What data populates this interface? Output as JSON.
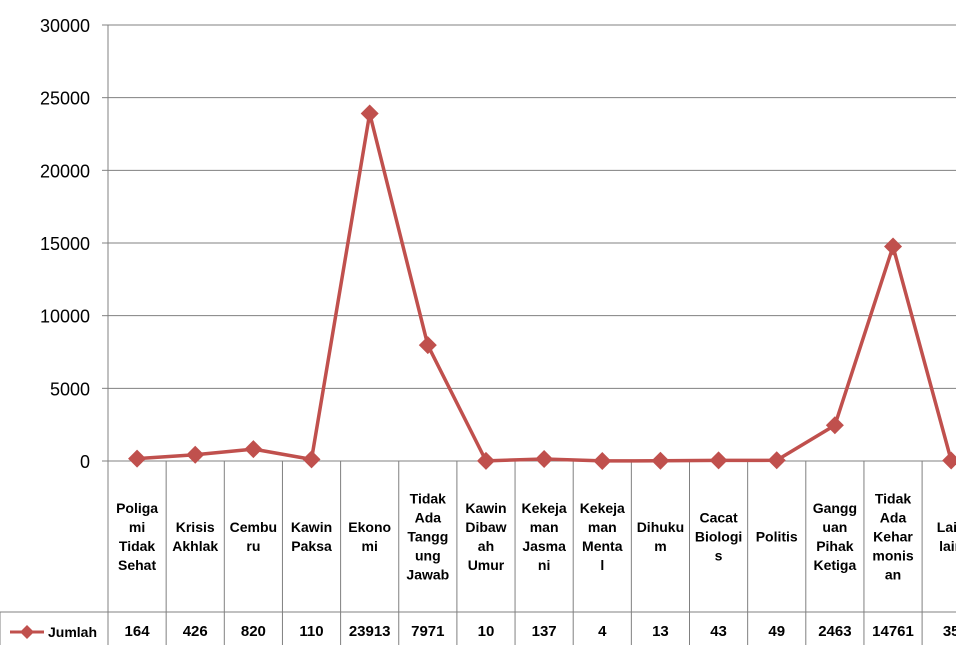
{
  "chart_data": {
    "type": "line",
    "categories": [
      "Poliga mi Tidak Sehat",
      "Krisis Akhlak",
      "Cembu ru",
      "Kawin Paksa",
      "Ekono mi",
      "Tidak Ada Tangg ung Jawab",
      "Kawin Dibaw ah Umur",
      "Kekeja man Jasma ni",
      "Kekeja man Menta l",
      "Dihuku m",
      "Cacat Biologi s",
      "Politis",
      "Gangg uan Pihak Ketiga",
      "Tidak Ada Kehar monis an",
      "Lain lain"
    ],
    "category_lines": [
      [
        "Poliga",
        "mi",
        "Tidak",
        "Sehat"
      ],
      [
        "Krisis",
        "Akhlak"
      ],
      [
        "Cembu",
        "ru"
      ],
      [
        "Kawin",
        "Paksa"
      ],
      [
        "Ekono",
        "mi"
      ],
      [
        "Tidak",
        "Ada",
        "Tangg",
        "ung",
        "Jawab"
      ],
      [
        "Kawin",
        "Dibaw",
        "ah",
        "Umur"
      ],
      [
        "Kekeja",
        "man",
        "Jasma",
        "ni"
      ],
      [
        "Kekeja",
        "man",
        "Menta",
        "l"
      ],
      [
        "Dihuku",
        "m"
      ],
      [
        "Cacat",
        "Biologi",
        "s"
      ],
      [
        "Politis"
      ],
      [
        "Gangg",
        "uan",
        "Pihak",
        "Ketiga"
      ],
      [
        "Tidak",
        "Ada",
        "Kehar",
        "monis",
        "an"
      ],
      [
        "Lain",
        "lain"
      ]
    ],
    "series": [
      {
        "name": "Jumlah",
        "color": "#c0504d",
        "values": [
          164,
          426,
          820,
          110,
          23913,
          7971,
          10,
          137,
          4,
          13,
          43,
          49,
          2463,
          14761,
          35
        ]
      }
    ],
    "value_labels": [
      "164",
      "426",
      "820",
      "110",
      "23913",
      "7971",
      "10",
      "137",
      "4",
      "13",
      "43",
      "49",
      "2463",
      "14761",
      "35"
    ],
    "yticks": [
      "0",
      "5000",
      "10000",
      "15000",
      "20000",
      "25000",
      "30000"
    ],
    "ylim": [
      0,
      30000
    ],
    "grid": true,
    "legend": "data-table-left",
    "legend_icon": "diamond-line-icon",
    "axis_color": "#808080",
    "grid_color": "#808080"
  }
}
